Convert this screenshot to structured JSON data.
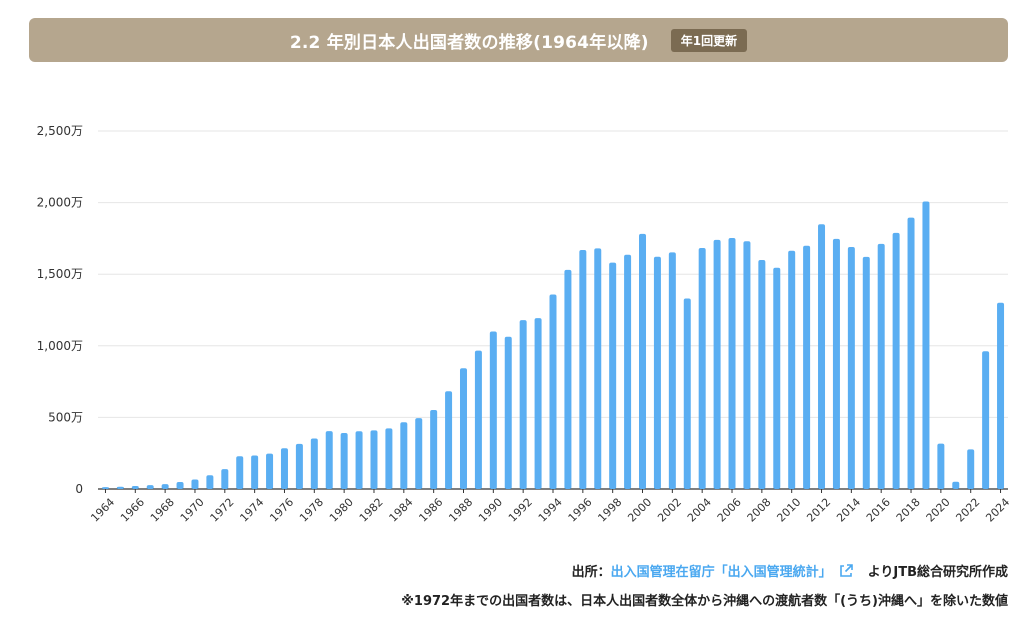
{
  "header": {
    "title": "2.2 年別日本人出国者数の推移(1964年以降)",
    "badge": "年1回更新"
  },
  "colors": {
    "bar": "#5aaef2",
    "header_bg": "#b5a68e",
    "badge_bg": "#7b6b52",
    "link": "#4aa8f0"
  },
  "source": {
    "prefix": "出所：",
    "link_text": "出入国管理在留庁「出入国管理統計」",
    "link_icon": "external-link-icon",
    "suffix": "よりJTB総合研究所作成"
  },
  "note": "※1972年までの出国者数は、日本人出国者数全体から沖縄への渡航者数「(うち)沖縄へ」を除いた数値",
  "chart_data": {
    "type": "bar",
    "title": "",
    "xlabel": "",
    "ylabel": "",
    "unit": "万人",
    "ylim": [
      0,
      2500
    ],
    "yticks": [
      0,
      500,
      1000,
      1500,
      2000,
      2500
    ],
    "ytick_labels": [
      "0",
      "500万",
      "1,000万",
      "1,500万",
      "2,000万",
      "2,500万"
    ],
    "categories": [
      "1964",
      "1965",
      "1966",
      "1967",
      "1968",
      "1969",
      "1970",
      "1971",
      "1972",
      "1973",
      "1974",
      "1975",
      "1976",
      "1977",
      "1978",
      "1979",
      "1980",
      "1981",
      "1982",
      "1983",
      "1984",
      "1985",
      "1986",
      "1987",
      "1988",
      "1989",
      "1990",
      "1991",
      "1992",
      "1993",
      "1994",
      "1995",
      "1996",
      "1997",
      "1998",
      "1999",
      "2000",
      "2001",
      "2002",
      "2003",
      "2004",
      "2005",
      "2006",
      "2007",
      "2008",
      "2009",
      "2010",
      "2011",
      "2012",
      "2013",
      "2014",
      "2015",
      "2016",
      "2017",
      "2018",
      "2019",
      "2020",
      "2021",
      "2022",
      "2023",
      "2024"
    ],
    "x_tick_labels": [
      "1964",
      "1966",
      "1968",
      "1970",
      "1972",
      "1974",
      "1976",
      "1978",
      "1980",
      "1982",
      "1984",
      "1986",
      "1988",
      "1990",
      "1992",
      "1994",
      "1996",
      "1998",
      "2000",
      "2002",
      "2004",
      "2006",
      "2008",
      "2010",
      "2012",
      "2014",
      "2016",
      "2018",
      "2020",
      "2022",
      "2024"
    ],
    "values": [
      13,
      16,
      21,
      27,
      34,
      49,
      66,
      96,
      139,
      229,
      234,
      247,
      285,
      315,
      353,
      404,
      391,
      403,
      409,
      423,
      466,
      495,
      552,
      683,
      843,
      966,
      1100,
      1063,
      1179,
      1193,
      1358,
      1530,
      1669,
      1680,
      1581,
      1636,
      1782,
      1622,
      1652,
      1330,
      1683,
      1740,
      1753,
      1730,
      1599,
      1545,
      1664,
      1699,
      1849,
      1747,
      1690,
      1621,
      1712,
      1789,
      1895,
      2008,
      317,
      51,
      277,
      962,
      1301
    ],
    "grid": true
  }
}
